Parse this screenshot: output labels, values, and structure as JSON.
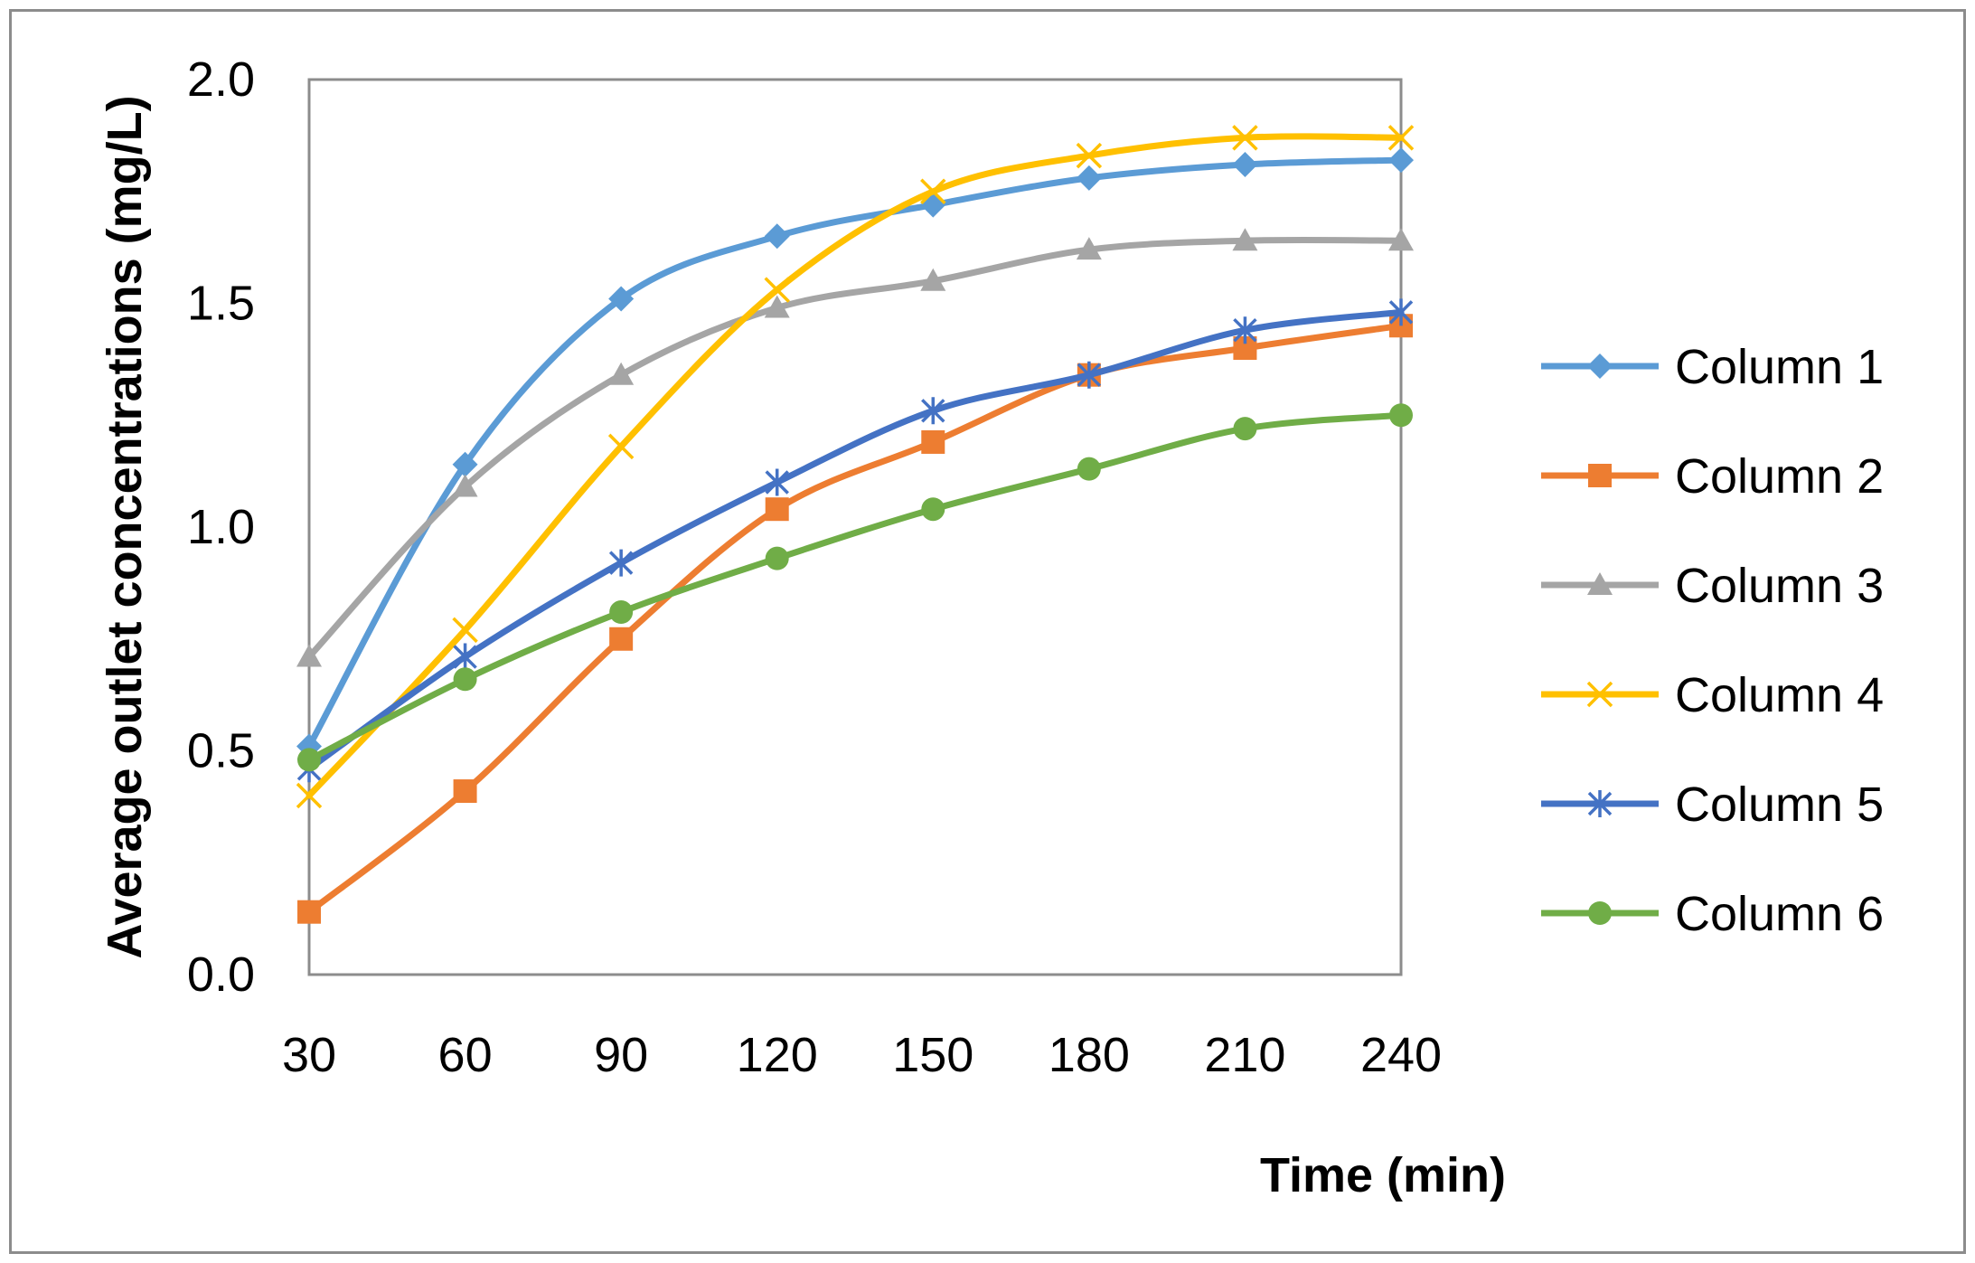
{
  "chart_data": {
    "type": "line",
    "title": "",
    "xlabel": "Time (min)",
    "ylabel": "Average outlet concentrations (mg/L)",
    "categories": [
      30,
      60,
      90,
      120,
      150,
      180,
      210,
      240
    ],
    "x_tick_labels": [
      "30",
      "60",
      "90",
      "120",
      "150",
      "180",
      "210",
      "240"
    ],
    "y_tick_labels": [
      "0.0",
      "0.5",
      "1.0",
      "1.5",
      "2.0"
    ],
    "y_ticks": [
      0.0,
      0.5,
      1.0,
      1.5,
      2.0
    ],
    "ylim": [
      0,
      2.0
    ],
    "grid": false,
    "smooth": true,
    "legend_position": "right",
    "series": [
      {
        "name": "Column 1",
        "color": "#5b9bd5",
        "marker": "diamond",
        "values": [
          0.51,
          1.14,
          1.51,
          1.65,
          1.72,
          1.78,
          1.81,
          1.82
        ]
      },
      {
        "name": "Column 2",
        "color": "#ed7d31",
        "marker": "square",
        "values": [
          0.14,
          0.41,
          0.75,
          1.04,
          1.19,
          1.34,
          1.4,
          1.45
        ]
      },
      {
        "name": "Column 3",
        "color": "#a5a5a5",
        "marker": "triangle",
        "values": [
          0.71,
          1.09,
          1.34,
          1.49,
          1.55,
          1.62,
          1.64,
          1.64
        ]
      },
      {
        "name": "Column 4",
        "color": "#ffc000",
        "marker": "x",
        "values": [
          0.4,
          0.77,
          1.18,
          1.53,
          1.75,
          1.83,
          1.87,
          1.87
        ]
      },
      {
        "name": "Column 5",
        "color": "#4472c4",
        "marker": "star",
        "values": [
          0.46,
          0.71,
          0.92,
          1.1,
          1.26,
          1.34,
          1.44,
          1.48
        ]
      },
      {
        "name": "Column 6",
        "color": "#70ad47",
        "marker": "circle",
        "values": [
          0.48,
          0.66,
          0.81,
          0.93,
          1.04,
          1.13,
          1.22,
          1.25
        ]
      }
    ]
  }
}
